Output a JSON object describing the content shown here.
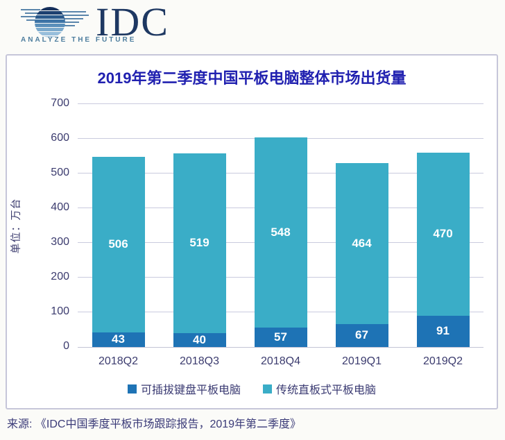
{
  "logo": {
    "name": "IDC",
    "tagline": "ANALYZE THE FUTURE"
  },
  "colors": {
    "series_detachable": "#1e73b5",
    "series_slate": "#3aadc7",
    "title_text": "#2121b0",
    "axis_text": "#3b3b6e",
    "gridline": "#c9cade",
    "panel_border": "#c6c6d9",
    "value_label": "#ffffff",
    "logo_navy": "#1e3862",
    "logo_tagline": "#4d7d9e"
  },
  "chart_data": {
    "type": "bar",
    "stacked": true,
    "title": "2019年第二季度中国平板电脑整体市场出货量",
    "categories": [
      "2018Q2",
      "2018Q3",
      "2018Q4",
      "2019Q1",
      "2019Q2"
    ],
    "series": [
      {
        "name": "可插拔键盘平板电脑",
        "color": "#1e73b5",
        "values": [
          43,
          40,
          57,
          67,
          91
        ]
      },
      {
        "name": "传统直板式平板电脑",
        "color": "#3aadc7",
        "values": [
          506,
          519,
          548,
          464,
          470
        ]
      }
    ],
    "totals": [
      549,
      559,
      605,
      531,
      561
    ],
    "ylabel": "单位：万台",
    "xlabel": "",
    "ylim": [
      0,
      700
    ],
    "ytick_step": 100,
    "grid": true,
    "legend_position": "bottom"
  },
  "source": "来源: 《IDC中国季度平板市场跟踪报告，2019年第二季度》"
}
